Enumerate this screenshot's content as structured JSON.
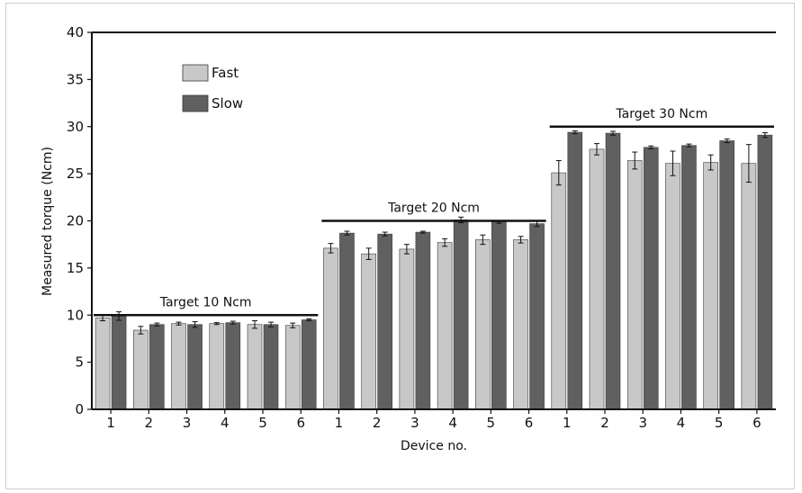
{
  "chart_data": {
    "type": "bar",
    "title": "",
    "xlabel": "Device no.",
    "ylabel": "Measured torque (Ncm)",
    "ylim": [
      0,
      40
    ],
    "yticks": [
      0,
      5,
      10,
      15,
      20,
      25,
      30,
      35,
      40
    ],
    "categories": [
      "1",
      "2",
      "3",
      "4",
      "5",
      "6",
      "1",
      "2",
      "3",
      "4",
      "5",
      "6",
      "1",
      "2",
      "3",
      "4",
      "5",
      "6"
    ],
    "legend_position": "top-left",
    "colors": {
      "Fast": "#c8c8c8",
      "Slow": "#606060"
    },
    "series": [
      {
        "name": "Fast",
        "values": [
          9.7,
          8.4,
          9.1,
          9.1,
          9.0,
          8.9,
          17.1,
          16.5,
          17.0,
          17.7,
          18.0,
          18.0,
          25.1,
          27.6,
          26.4,
          26.1,
          26.2,
          26.1
        ],
        "errors": [
          0.3,
          0.4,
          0.15,
          0.1,
          0.4,
          0.25,
          0.5,
          0.6,
          0.5,
          0.4,
          0.5,
          0.35,
          1.3,
          0.6,
          0.9,
          1.3,
          0.8,
          2.0
        ]
      },
      {
        "name": "Slow",
        "values": [
          9.9,
          9.0,
          9.0,
          9.2,
          9.0,
          9.5,
          18.7,
          18.6,
          18.8,
          20.1,
          19.9,
          19.7,
          29.4,
          29.3,
          27.8,
          28.0,
          28.5,
          29.1
        ],
        "errors": [
          0.45,
          0.15,
          0.3,
          0.15,
          0.25,
          0.1,
          0.2,
          0.2,
          0.1,
          0.3,
          0.15,
          0.3,
          0.15,
          0.2,
          0.15,
          0.15,
          0.2,
          0.25
        ]
      }
    ],
    "targets": [
      {
        "label": "Target 10 Ncm",
        "value": 10,
        "from": 0,
        "to": 5
      },
      {
        "label": "Target 20 Ncm",
        "value": 20,
        "from": 6,
        "to": 11
      },
      {
        "label": "Target 30 Ncm",
        "value": 30,
        "from": 12,
        "to": 17
      }
    ]
  }
}
